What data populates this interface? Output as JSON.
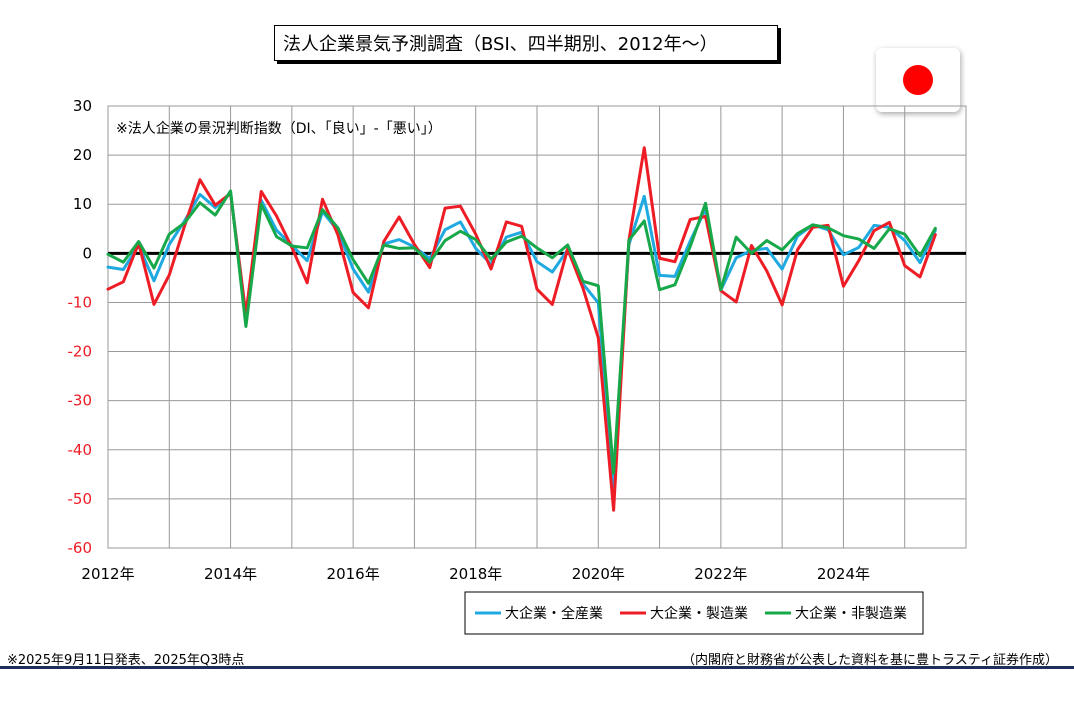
{
  "title": "法人企業景気予測調査（BSI、四半期別、2012年～）",
  "flag_icon": "japan-flag-icon",
  "footnote": "※2025年9月11日発表、2025年Q3時点",
  "source": "（内閣府と財務省が公表した資料を基に豊トラスティ証券作成）",
  "chart_data": {
    "type": "line",
    "subtitle": "※法人企業の景況判断指数（DI、「良い」-「悪い」）",
    "xlabel": "",
    "ylabel": "",
    "ylim": [
      -60,
      30
    ],
    "yticks": [
      30,
      20,
      10,
      0,
      -10,
      -20,
      -30,
      -40,
      -50,
      -60
    ],
    "xtick_labels": [
      "2012年",
      "2014年",
      "2016年",
      "2018年",
      "2020年",
      "2022年",
      "2024年"
    ],
    "x": [
      "2012Q1",
      "2012Q2",
      "2012Q3",
      "2012Q4",
      "2013Q1",
      "2013Q2",
      "2013Q3",
      "2013Q4",
      "2014Q1",
      "2014Q2",
      "2014Q3",
      "2014Q4",
      "2015Q1",
      "2015Q2",
      "2015Q3",
      "2015Q4",
      "2016Q1",
      "2016Q2",
      "2016Q3",
      "2016Q4",
      "2017Q1",
      "2017Q2",
      "2017Q3",
      "2017Q4",
      "2018Q1",
      "2018Q2",
      "2018Q3",
      "2018Q4",
      "2019Q1",
      "2019Q2",
      "2019Q3",
      "2019Q4",
      "2020Q1",
      "2020Q2",
      "2020Q3",
      "2020Q4",
      "2021Q1",
      "2021Q2",
      "2021Q3",
      "2021Q4",
      "2022Q1",
      "2022Q2",
      "2022Q3",
      "2022Q4",
      "2023Q1",
      "2023Q2",
      "2023Q3",
      "2023Q4",
      "2024Q1",
      "2024Q2",
      "2024Q3",
      "2024Q4",
      "2025Q1",
      "2025Q2",
      "2025Q3"
    ],
    "grid": true,
    "zero_line": true,
    "legend_position": "bottom-right",
    "series": [
      {
        "name": "大企業・全産業",
        "color": "#1fa9e1",
        "values": [
          -2.8,
          -3.3,
          1.6,
          -5.6,
          1.8,
          6.6,
          12.0,
          9.3,
          12.3,
          -12.5,
          10.8,
          4.7,
          1.6,
          -1.5,
          8.5,
          4.6,
          -3.2,
          -7.9,
          1.9,
          2.8,
          1.3,
          -1.1,
          4.8,
          6.4,
          1.0,
          -2.2,
          3.3,
          4.3,
          -1.7,
          -3.8,
          0.7,
          -6.2,
          -10.1,
          -47.6,
          1.8,
          11.6,
          -4.5,
          -4.7,
          2.5,
          9.0,
          -7.5,
          -0.9,
          0.6,
          1.0,
          -3.2,
          3.5,
          5.8,
          4.8,
          -0.3,
          1.2,
          5.7,
          5.3,
          2.6,
          -1.9,
          4.7
        ]
      },
      {
        "name": "大企業・製造業",
        "color": "#ee1c25",
        "values": [
          -7.3,
          -5.8,
          2.1,
          -10.4,
          -4.4,
          5.6,
          15.0,
          9.8,
          12.2,
          -12.5,
          12.6,
          7.6,
          1.2,
          -6.0,
          11.0,
          3.8,
          -8.0,
          -11.1,
          2.4,
          7.4,
          1.8,
          -2.9,
          9.2,
          9.6,
          3.9,
          -3.2,
          6.4,
          5.5,
          -7.3,
          -10.4,
          0.9,
          -7.1,
          -17.2,
          -52.3,
          2.7,
          21.5,
          -1.0,
          -1.7,
          6.9,
          7.5,
          -7.6,
          -9.9,
          1.6,
          -3.6,
          -10.5,
          0.7,
          5.3,
          5.7,
          -6.7,
          -1.5,
          4.6,
          6.3,
          -2.5,
          -4.8,
          3.8
        ]
      },
      {
        "name": "大企業・非製造業",
        "color": "#17a84a",
        "values": [
          -0.2,
          -1.8,
          2.4,
          -3.0,
          3.9,
          6.2,
          10.3,
          7.8,
          12.7,
          -14.9,
          10.0,
          3.4,
          1.5,
          1.1,
          8.9,
          5.2,
          -1.3,
          -6.1,
          1.7,
          1.0,
          1.1,
          -1.8,
          2.6,
          4.5,
          2.8,
          -1.2,
          2.3,
          3.5,
          1.1,
          -0.9,
          1.7,
          -5.7,
          -6.6,
          -44.8,
          2.7,
          6.6,
          -7.4,
          -6.4,
          1.4,
          10.2,
          -7.4,
          3.3,
          0.0,
          2.6,
          0.7,
          4.0,
          5.8,
          5.2,
          3.6,
          2.9,
          1.0,
          5.0,
          3.9,
          -0.5,
          5.1
        ]
      }
    ]
  }
}
